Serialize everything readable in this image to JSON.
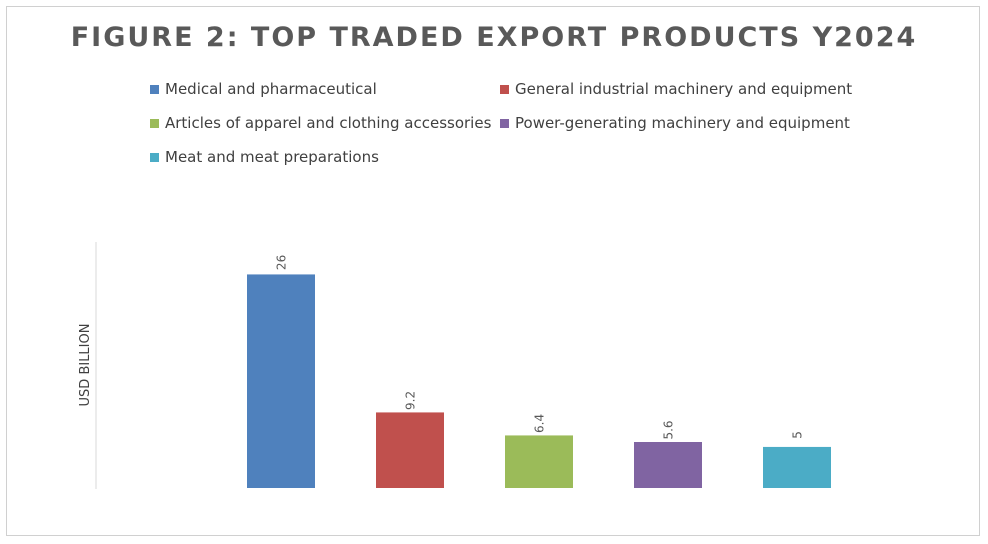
{
  "chart_data": {
    "type": "bar",
    "title": "FIGURE 2: TOP TRADED EXPORT PRODUCTS Y2024",
    "ylabel": "USD BILLION",
    "xlabel": "",
    "categories": [
      "Medical and pharmaceutical",
      "General industrial machinery and equipment",
      "Articles of apparel and clothing accessories",
      "Power-generating machinery and equipment",
      "Meat and meat preparations"
    ],
    "values": [
      26,
      9.2,
      6.4,
      5.6,
      5
    ],
    "data_labels": [
      "26",
      "9.2",
      "6.4",
      "5.6",
      "5"
    ],
    "colors": [
      "#4f81bd",
      "#c0504d",
      "#9bbb59",
      "#8064a2",
      "#4bacc6"
    ],
    "ylim": [
      0,
      28
    ],
    "legend_position": "top",
    "grid": false
  }
}
